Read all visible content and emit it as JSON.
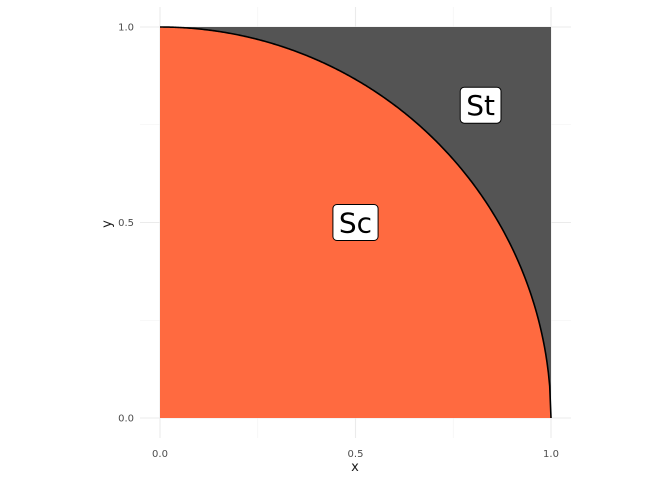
{
  "chart_data": {
    "type": "area",
    "xlabel": "x",
    "ylabel": "y",
    "xlim": [
      0,
      1
    ],
    "ylim": [
      0,
      1
    ],
    "x_ticks": [
      "0.0",
      "0.5",
      "1.0"
    ],
    "y_ticks": [
      "0.0",
      "0.5",
      "1.0"
    ],
    "x_tick_values": [
      0,
      0.5,
      1
    ],
    "y_tick_values": [
      0,
      0.5,
      1
    ],
    "grid": true,
    "regions": [
      {
        "label": "St",
        "color": "#545454",
        "shape": "unit square minus quarter circle",
        "label_x": 0.82,
        "label_y": 0.8
      },
      {
        "label": "Sc",
        "color": "#FF6A40",
        "shape": "quarter circle y = sqrt(1 - x^2)",
        "label_x": 0.5,
        "label_y": 0.5
      }
    ],
    "curve": {
      "function": "y = sqrt(1 - x^2)",
      "x_range": [
        0,
        1
      ],
      "color": "#000000"
    }
  }
}
